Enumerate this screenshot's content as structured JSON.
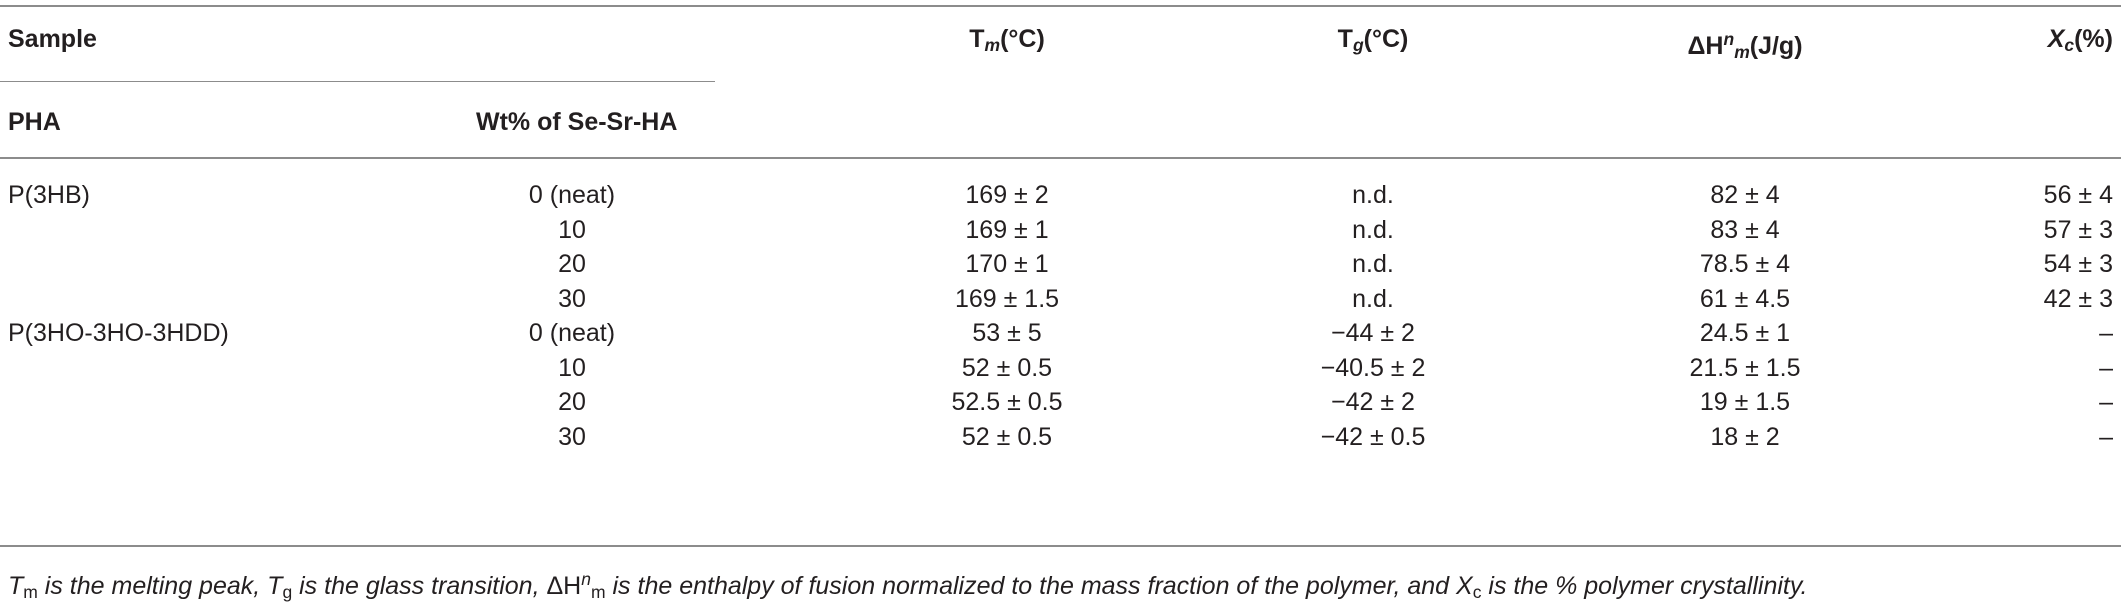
{
  "header": {
    "sample": "Sample",
    "pha": "PHA",
    "wt": "Wt% of Se-Sr-HA",
    "tm_base": "T",
    "tm_sub": "m",
    "tm_unit": "(°C)",
    "tg_base": "T",
    "tg_sub": "g",
    "tg_unit": "(°C)",
    "dh_base": "ΔH",
    "dh_sup": "n",
    "dh_sub": "m",
    "dh_unit": "(J/g)",
    "xc_base": "X",
    "xc_sub": "c",
    "xc_unit": "(%)"
  },
  "rows": [
    {
      "pha": "P(3HB)",
      "wt": "0 (neat)",
      "tm": "169 ± 2",
      "tg": "n.d.",
      "dh": "82 ± 4",
      "xc": "56 ± 4"
    },
    {
      "pha": "",
      "wt": "10",
      "tm": "169 ± 1",
      "tg": "n.d.",
      "dh": "83 ± 4",
      "xc": "57 ± 3"
    },
    {
      "pha": "",
      "wt": "20",
      "tm": "170 ± 1",
      "tg": "n.d.",
      "dh": "78.5 ± 4",
      "xc": "54 ± 3"
    },
    {
      "pha": "",
      "wt": "30",
      "tm": "169 ± 1.5",
      "tg": "n.d.",
      "dh": "61 ± 4.5",
      "xc": "42 ± 3"
    },
    {
      "pha": "P(3HO-3HO-3HDD)",
      "wt": "0 (neat)",
      "tm": "53 ± 5",
      "tg": "−44 ± 2",
      "dh": "24.5 ± 1",
      "xc": "–"
    },
    {
      "pha": "",
      "wt": "10",
      "tm": "52 ± 0.5",
      "tg": "−40.5 ± 2",
      "dh": "21.5 ± 1.5",
      "xc": "–"
    },
    {
      "pha": "",
      "wt": "20",
      "tm": "52.5 ± 0.5",
      "tg": "−42 ± 2",
      "dh": "19 ± 1.5",
      "xc": "–"
    },
    {
      "pha": "",
      "wt": "30",
      "tm": "52 ± 0.5",
      "tg": "−42 ± 0.5",
      "dh": "18 ± 2",
      "xc": "–"
    }
  ],
  "footnote": {
    "t1": "T",
    "t1_sub": "m",
    "t2": " is the melting peak, ",
    "t3": "T",
    "t3_sub": "g",
    "t4": " is the glass transition, ",
    "t5": "ΔH",
    "t5_sup": "n",
    "t5_sub": "m",
    "t6": " is the enthalpy of fusion normalized to the mass fraction of the polymer, and ",
    "t7": "X",
    "t7_sub": "c",
    "t8": " is the % polymer crystallinity."
  }
}
